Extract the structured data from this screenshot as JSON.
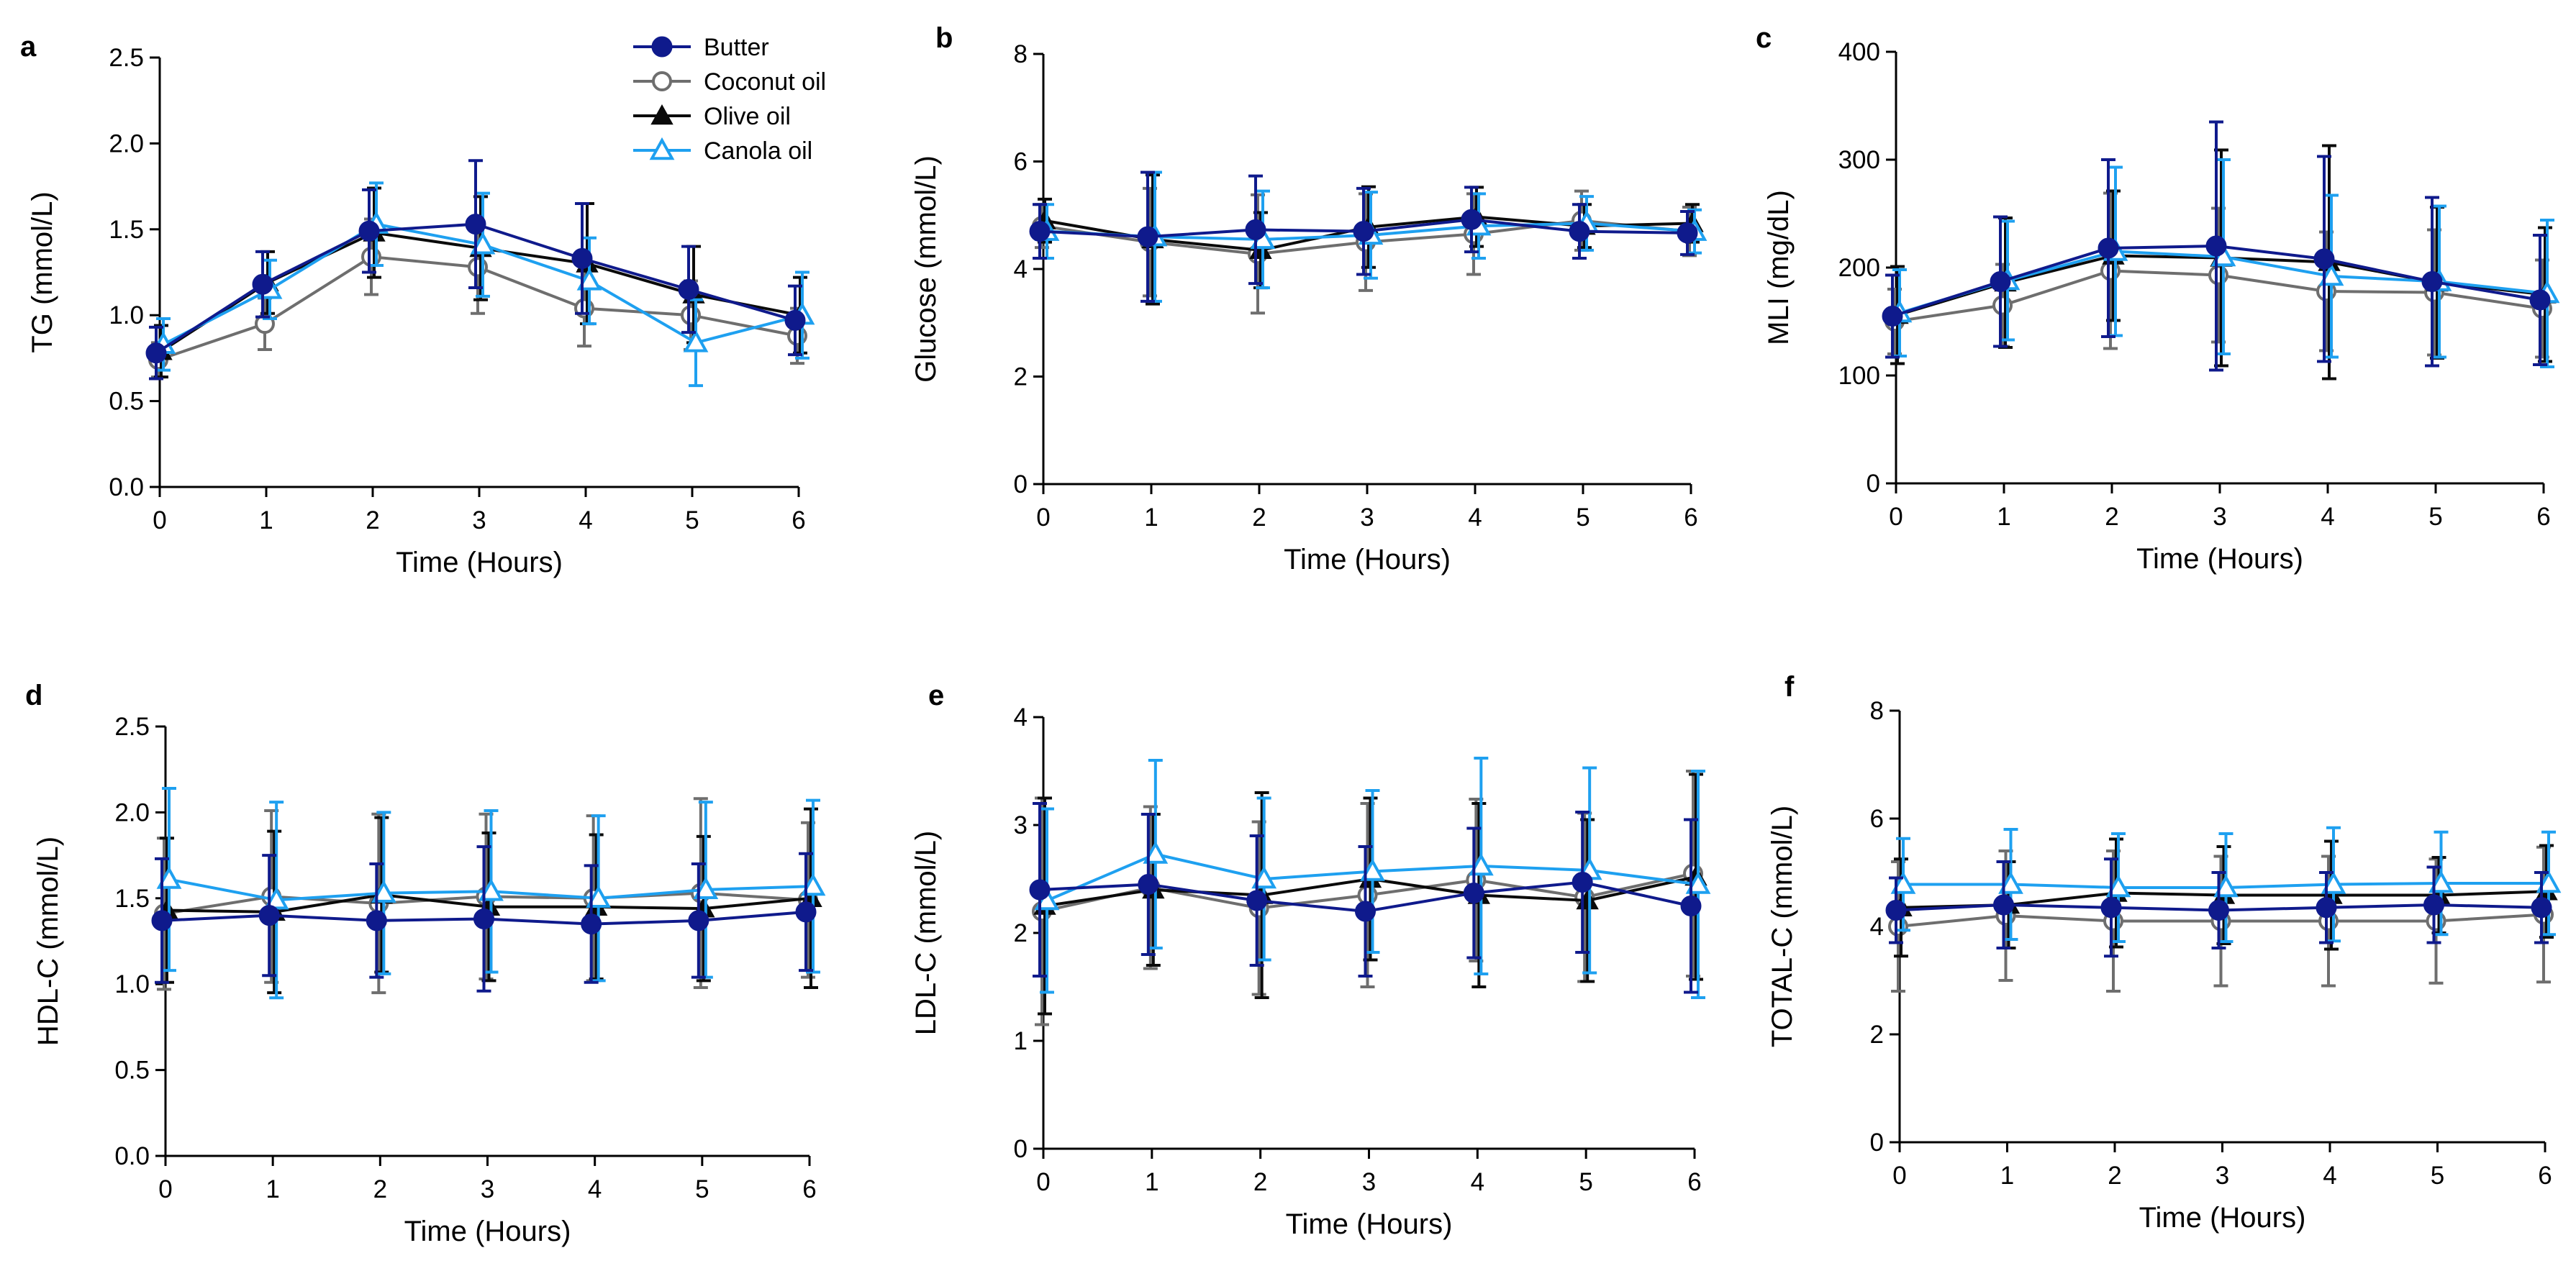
{
  "chart_data": [
    {
      "type": "line",
      "panel_label": "a",
      "xlabel": "Time (Hours)",
      "ylabel": "TG (mmol/L)",
      "x": [
        0,
        1,
        2,
        3,
        4,
        5,
        6
      ],
      "xlim": [
        0,
        6
      ],
      "ylim": [
        0,
        2.5
      ],
      "yticks": [
        0,
        0.5,
        1,
        1.5,
        2,
        2.5
      ],
      "ytick_labels": [
        "0.0",
        "0.5",
        "1.0",
        "1.5",
        "2.0",
        "2.5"
      ],
      "legend": true,
      "series": [
        {
          "name": "Butter",
          "values": [
            0.78,
            1.18,
            1.49,
            1.53,
            1.33,
            1.15,
            0.97
          ],
          "errors": [
            0.15,
            0.19,
            0.24,
            0.37,
            0.32,
            0.25,
            0.2
          ]
        },
        {
          "name": "Coconut oil",
          "values": [
            0.74,
            0.95,
            1.34,
            1.28,
            1.04,
            1.0,
            0.88
          ],
          "errors": [
            0.1,
            0.15,
            0.22,
            0.27,
            0.22,
            0.2,
            0.16
          ]
        },
        {
          "name": "Olive oil",
          "values": [
            0.79,
            1.19,
            1.48,
            1.39,
            1.3,
            1.12,
            1.0
          ],
          "errors": [
            0.15,
            0.18,
            0.26,
            0.3,
            0.35,
            0.28,
            0.22
          ]
        },
        {
          "name": "Canola oil",
          "values": [
            0.83,
            1.15,
            1.53,
            1.41,
            1.2,
            0.84,
            1.0
          ],
          "errors": [
            0.15,
            0.17,
            0.24,
            0.3,
            0.25,
            0.25,
            0.25
          ]
        }
      ]
    },
    {
      "type": "line",
      "panel_label": "b",
      "xlabel": "Time (Hours)",
      "ylabel": "Glucose (mmol/L)",
      "x": [
        0,
        1,
        2,
        3,
        4,
        5,
        6
      ],
      "xlim": [
        0,
        6
      ],
      "ylim": [
        0,
        8
      ],
      "yticks": [
        0,
        2,
        4,
        6,
        8
      ],
      "ytick_labels": [
        "0",
        "2",
        "4",
        "6",
        "8"
      ],
      "legend": false,
      "series": [
        {
          "name": "Butter",
          "values": [
            4.7,
            4.6,
            4.73,
            4.7,
            4.92,
            4.7,
            4.67
          ],
          "errors": [
            0.5,
            1.2,
            1.0,
            0.8,
            0.6,
            0.5,
            0.4
          ]
        },
        {
          "name": "Coconut oil",
          "values": [
            4.8,
            4.5,
            4.28,
            4.5,
            4.65,
            4.9,
            4.7
          ],
          "errors": [
            0.4,
            1.0,
            1.1,
            0.9,
            0.75,
            0.55,
            0.45
          ]
        },
        {
          "name": "Olive oil",
          "values": [
            4.9,
            4.55,
            4.35,
            4.78,
            4.97,
            4.8,
            4.85
          ],
          "errors": [
            0.4,
            1.2,
            0.7,
            0.75,
            0.55,
            0.4,
            0.35
          ]
        },
        {
          "name": "Canola oil",
          "values": [
            4.7,
            4.6,
            4.55,
            4.63,
            4.8,
            4.85,
            4.7
          ],
          "errors": [
            0.5,
            1.2,
            0.9,
            0.8,
            0.6,
            0.5,
            0.4
          ]
        }
      ]
    },
    {
      "type": "line",
      "panel_label": "c",
      "xlabel": "Time (Hours)",
      "ylabel": "MLI (mg/dL)",
      "x": [
        0,
        1,
        2,
        3,
        4,
        5,
        6
      ],
      "xlim": [
        0,
        6
      ],
      "ylim": [
        0,
        400
      ],
      "yticks": [
        0,
        100,
        200,
        300,
        400
      ],
      "ytick_labels": [
        "0",
        "100",
        "200",
        "300",
        "400"
      ],
      "legend": false,
      "series": [
        {
          "name": "Butter",
          "values": [
            155,
            187,
            218,
            220,
            208,
            187,
            170
          ],
          "errors": [
            38,
            60,
            82,
            115,
            95,
            78,
            60
          ]
        },
        {
          "name": "Coconut oil",
          "values": [
            150,
            165,
            197,
            193,
            178,
            177,
            162
          ],
          "errors": [
            30,
            38,
            72,
            62,
            55,
            58,
            45
          ]
        },
        {
          "name": "Olive oil",
          "values": [
            156,
            186,
            211,
            209,
            205,
            186,
            175
          ],
          "errors": [
            45,
            60,
            60,
            100,
            108,
            70,
            62
          ]
        },
        {
          "name": "Canola oil",
          "values": [
            158,
            188,
            215,
            210,
            192,
            187,
            176
          ],
          "errors": [
            40,
            55,
            78,
            90,
            75,
            70,
            68
          ]
        }
      ]
    },
    {
      "type": "line",
      "panel_label": "d",
      "xlabel": "Time (Hours)",
      "ylabel": "HDL-C (mmol/L)",
      "x": [
        0,
        1,
        2,
        3,
        4,
        5,
        6
      ],
      "xlim": [
        0,
        6
      ],
      "ylim": [
        0,
        2.5
      ],
      "yticks": [
        0,
        0.5,
        1,
        1.5,
        2,
        2.5
      ],
      "ytick_labels": [
        "0.0",
        "0.5",
        "1.0",
        "1.5",
        "2.0",
        "2.5"
      ],
      "legend": false,
      "series": [
        {
          "name": "Butter",
          "values": [
            1.37,
            1.4,
            1.37,
            1.38,
            1.35,
            1.37,
            1.42
          ],
          "errors": [
            0.36,
            0.35,
            0.33,
            0.42,
            0.34,
            0.33,
            0.34
          ]
        },
        {
          "name": "Coconut oil",
          "values": [
            1.41,
            1.51,
            1.47,
            1.51,
            1.5,
            1.53,
            1.49
          ],
          "errors": [
            0.44,
            0.5,
            0.52,
            0.48,
            0.48,
            0.55,
            0.45
          ]
        },
        {
          "name": "Olive oil",
          "values": [
            1.43,
            1.42,
            1.52,
            1.45,
            1.45,
            1.44,
            1.5
          ],
          "errors": [
            0.42,
            0.47,
            0.45,
            0.43,
            0.42,
            0.42,
            0.52
          ]
        },
        {
          "name": "Canola oil",
          "values": [
            1.61,
            1.49,
            1.53,
            1.54,
            1.5,
            1.55,
            1.57
          ],
          "errors": [
            0.53,
            0.57,
            0.47,
            0.47,
            0.48,
            0.51,
            0.5
          ]
        }
      ]
    },
    {
      "type": "line",
      "panel_label": "e",
      "xlabel": "Time (Hours)",
      "ylabel": "LDL-C (mmol/L)",
      "x": [
        0,
        1,
        2,
        3,
        4,
        5,
        6
      ],
      "xlim": [
        0,
        6
      ],
      "ylim": [
        0,
        4
      ],
      "yticks": [
        0,
        1,
        2,
        3,
        4
      ],
      "ytick_labels": [
        "0",
        "1",
        "2",
        "3",
        "4"
      ],
      "legend": false,
      "series": [
        {
          "name": "Butter",
          "values": [
            2.4,
            2.45,
            2.3,
            2.2,
            2.37,
            2.47,
            2.25
          ],
          "errors": [
            0.8,
            0.65,
            0.6,
            0.6,
            0.6,
            0.65,
            0.8
          ]
        },
        {
          "name": "Coconut oil",
          "values": [
            2.2,
            2.42,
            2.23,
            2.35,
            2.49,
            2.33,
            2.55
          ],
          "errors": [
            1.05,
            0.75,
            0.8,
            0.85,
            0.75,
            0.78,
            0.95
          ]
        },
        {
          "name": "Olive oil",
          "values": [
            2.25,
            2.4,
            2.35,
            2.5,
            2.35,
            2.3,
            2.52
          ],
          "errors": [
            1.0,
            0.7,
            0.95,
            0.75,
            0.85,
            0.75,
            0.95
          ]
        },
        {
          "name": "Canola oil",
          "values": [
            2.3,
            2.73,
            2.5,
            2.57,
            2.62,
            2.58,
            2.45
          ],
          "errors": [
            0.85,
            0.87,
            0.75,
            0.75,
            1.0,
            0.95,
            1.05
          ]
        }
      ]
    },
    {
      "type": "line",
      "panel_label": "f",
      "xlabel": "Time (Hours)",
      "ylabel": "TOTAL-C (mmol/L)",
      "x": [
        0,
        1,
        2,
        3,
        4,
        5,
        6
      ],
      "xlim": [
        0,
        6
      ],
      "ylim": [
        0,
        8
      ],
      "yticks": [
        0,
        2,
        4,
        6,
        8
      ],
      "ytick_labels": [
        "0",
        "2",
        "4",
        "6",
        "8"
      ],
      "legend": false,
      "series": [
        {
          "name": "Butter",
          "values": [
            4.3,
            4.4,
            4.35,
            4.3,
            4.35,
            4.4,
            4.35
          ],
          "errors": [
            0.6,
            0.8,
            0.9,
            0.7,
            0.65,
            0.7,
            0.65
          ]
        },
        {
          "name": "Coconut oil",
          "values": [
            4.0,
            4.2,
            4.1,
            4.1,
            4.1,
            4.1,
            4.22
          ],
          "errors": [
            1.2,
            1.2,
            1.3,
            1.2,
            1.2,
            1.15,
            1.25
          ]
        },
        {
          "name": "Olive oil",
          "values": [
            4.35,
            4.4,
            4.62,
            4.58,
            4.58,
            4.58,
            4.65
          ],
          "errors": [
            0.9,
            0.8,
            1.0,
            0.9,
            1.0,
            0.7,
            0.85
          ]
        },
        {
          "name": "Canola oil",
          "values": [
            4.78,
            4.78,
            4.72,
            4.72,
            4.78,
            4.8,
            4.8
          ],
          "errors": [
            0.85,
            1.02,
            1.0,
            1.0,
            1.05,
            0.95,
            0.95
          ]
        }
      ]
    }
  ],
  "legend_series": [
    {
      "name": "Butter",
      "color": "#0f1a8c",
      "marker": "circle-filled"
    },
    {
      "name": "Coconut oil",
      "color": "#6e6e6e",
      "marker": "circle-open"
    },
    {
      "name": "Olive oil",
      "color": "#0a0a0a",
      "marker": "triangle-filled"
    },
    {
      "name": "Canola oil",
      "color": "#1ea0f0",
      "marker": "triangle-open"
    }
  ]
}
